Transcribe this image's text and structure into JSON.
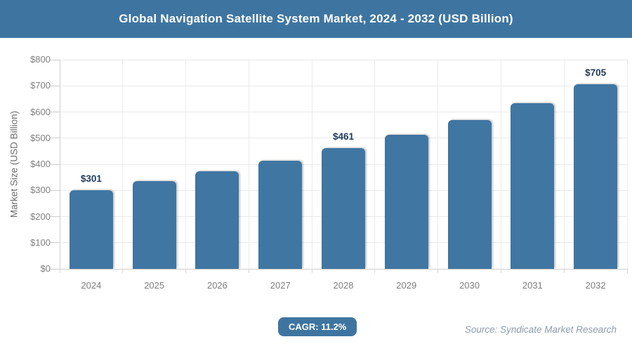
{
  "header": {
    "title": "Global Navigation Satellite System Market, 2024 - 2032 (USD Billion)"
  },
  "colors": {
    "accent_blue": "#3e75a0",
    "bar_blue": "#4076a2",
    "value_label": "#1f3a5c",
    "gridline": "#e9e9e9",
    "axis_text": "#7f7f7f"
  },
  "chart_data": {
    "type": "bar",
    "title": "Global Navigation Satellite System Market, 2024 - 2032 (USD Billion)",
    "categories": [
      "2024",
      "2025",
      "2026",
      "2027",
      "2028",
      "2029",
      "2030",
      "2031",
      "2032"
    ],
    "values": [
      301,
      335,
      372,
      414,
      461,
      512,
      569,
      633,
      705
    ],
    "data_labels": [
      "$301",
      null,
      null,
      null,
      "$461",
      null,
      null,
      null,
      "$705"
    ],
    "xlabel": "",
    "ylabel": "Market Size (USD Billion)",
    "ylim": [
      0,
      800
    ],
    "ytick_step": 100,
    "ytick_labels": [
      "$0",
      "$100",
      "$200",
      "$300",
      "$400",
      "$500",
      "$600",
      "$700",
      "$800"
    ],
    "grid": "horizontal and vertical, light gray",
    "legend": "none"
  },
  "footer": {
    "cagr_label": "CAGR: 11.2%",
    "source": "Source: Syndicate Market Research"
  }
}
